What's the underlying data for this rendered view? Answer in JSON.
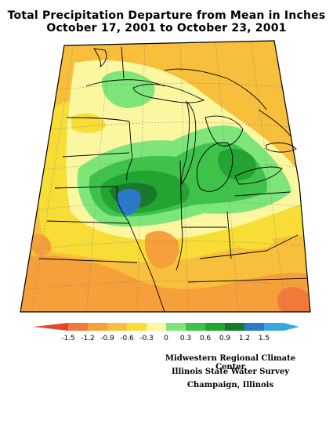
{
  "title": {
    "line1": "Total Precipitation Departure from Mean in Inches",
    "line2": "October 17, 2001 to October 23, 2001"
  },
  "legend": {
    "colors": [
      "#e8452a",
      "#f07a3a",
      "#f6a03c",
      "#f8bf3c",
      "#f7dd36",
      "#fbf7a0",
      "#7ee57a",
      "#3fc24a",
      "#22a530",
      "#18782b",
      "#2c79c9",
      "#3aa6df"
    ],
    "tick_labels": [
      "-1.5",
      "-1.2",
      "-0.9",
      "-0.6",
      "-0.3",
      "0",
      "0.3",
      "0.6",
      "0.9",
      "1.2",
      "1.5"
    ]
  },
  "credits": {
    "line1": "Midwestern Regional Climate Center",
    "line2": "Illinois State Water Survey",
    "line3": "Champaign, Illinois"
  }
}
